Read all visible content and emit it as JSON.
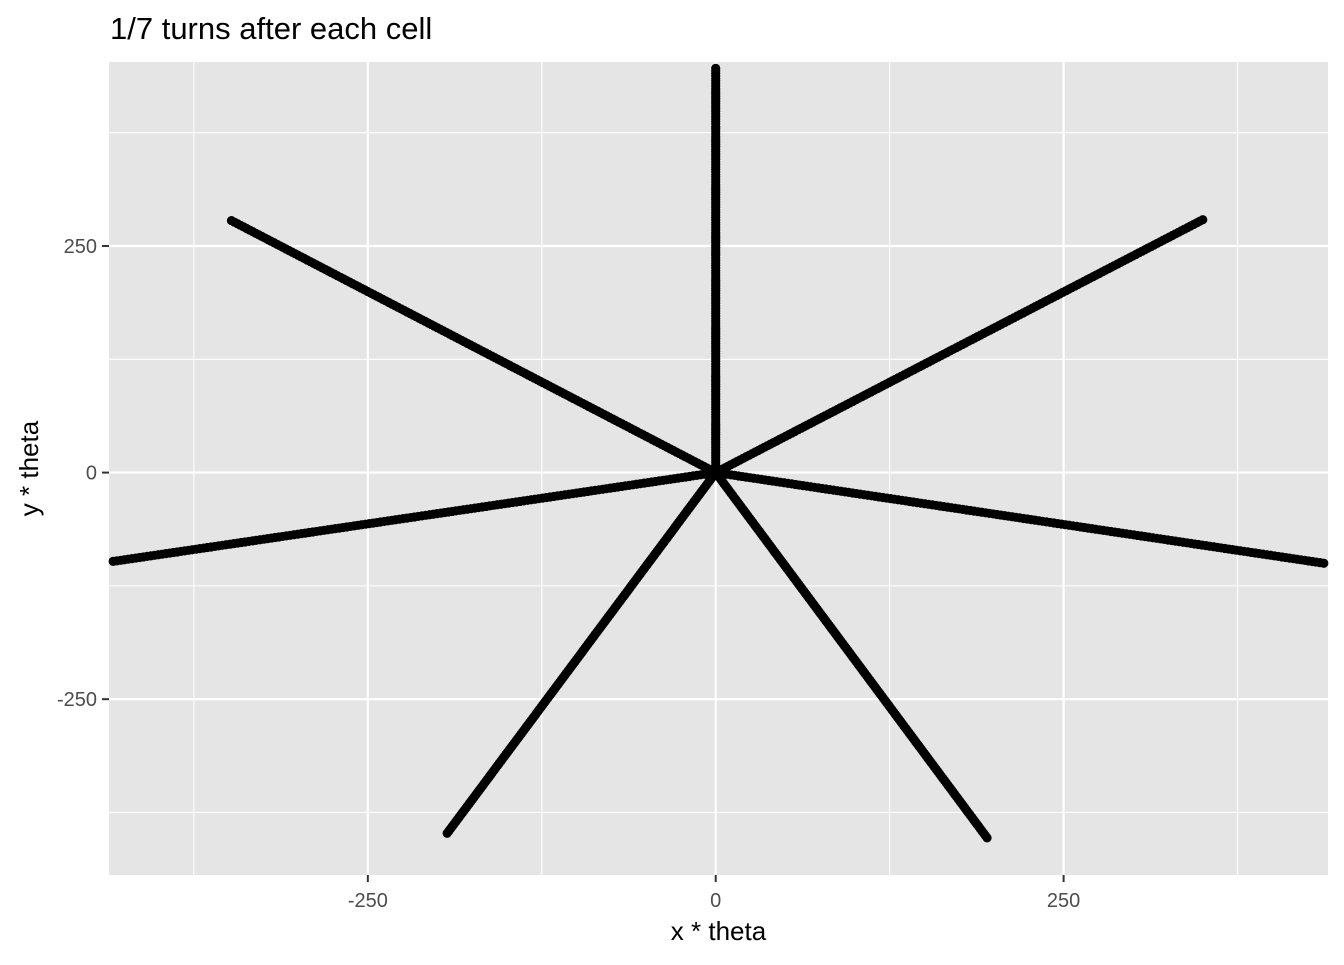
{
  "chart_data": {
    "type": "scatter",
    "title": "1/7 turns after each cell",
    "xlabel": "x * theta",
    "ylabel": "y * theta",
    "xlim": [
      -436,
      440
    ],
    "ylim": [
      -444,
      453
    ],
    "x_ticks": [
      -250,
      0,
      250
    ],
    "x_tick_labels": [
      "-250",
      "0",
      "250"
    ],
    "x_minor_ticks": [
      -375,
      -125,
      125,
      375
    ],
    "y_ticks": [
      -250,
      0,
      250
    ],
    "y_tick_labels": [
      "-250",
      "0",
      "250"
    ],
    "y_minor_ticks": [
      -375,
      -125,
      125,
      375
    ],
    "grid": true,
    "panel_color": "#e5e5e5",
    "grid_color": "#ffffff",
    "point_color": "#000000",
    "turns": 7,
    "points_per_arm": 160,
    "arm_endpoints": [
      {
        "x": 0,
        "y": 446
      },
      {
        "x": 350,
        "y": 279
      },
      {
        "x": 437,
        "y": -100
      },
      {
        "x": 195,
        "y": -403
      },
      {
        "x": -193,
        "y": -398
      },
      {
        "x": -433,
        "y": -98
      },
      {
        "x": -348,
        "y": 278
      }
    ]
  }
}
